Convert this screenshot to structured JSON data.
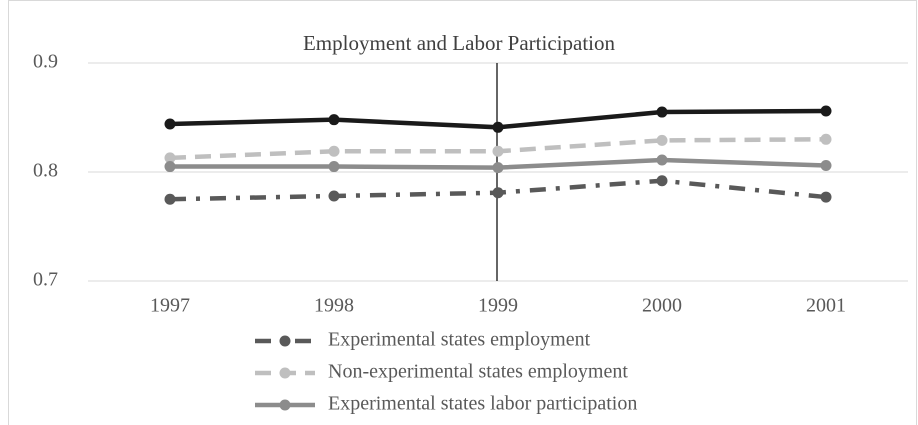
{
  "chart_data": {
    "type": "line",
    "title": "Employment and Labor Participation",
    "categories": [
      "1997",
      "1998",
      "1999",
      "2000",
      "2001"
    ],
    "series": [
      {
        "color": "#1a1a1a",
        "dash": "solid",
        "values": [
          0.844,
          0.848,
          0.841,
          0.855,
          0.856
        ]
      },
      {
        "name": "Experimental states employment",
        "color": "#595959",
        "dash": "dash-dot",
        "values": [
          0.775,
          0.778,
          0.781,
          0.792,
          0.777
        ]
      },
      {
        "name": "Non-experimental states employment",
        "color": "#bfbfbf",
        "dash": "dashed",
        "values": [
          0.813,
          0.819,
          0.819,
          0.829,
          0.83
        ]
      },
      {
        "name": "Experimental states labor participation",
        "color": "#8c8c8c",
        "dash": "solid",
        "values": [
          0.805,
          0.805,
          0.804,
          0.811,
          0.806
        ]
      }
    ],
    "ylim": [
      0.7,
      0.9
    ],
    "yticks": [
      0.7,
      0.8,
      0.9
    ],
    "grid": true,
    "legend": "bottom"
  }
}
